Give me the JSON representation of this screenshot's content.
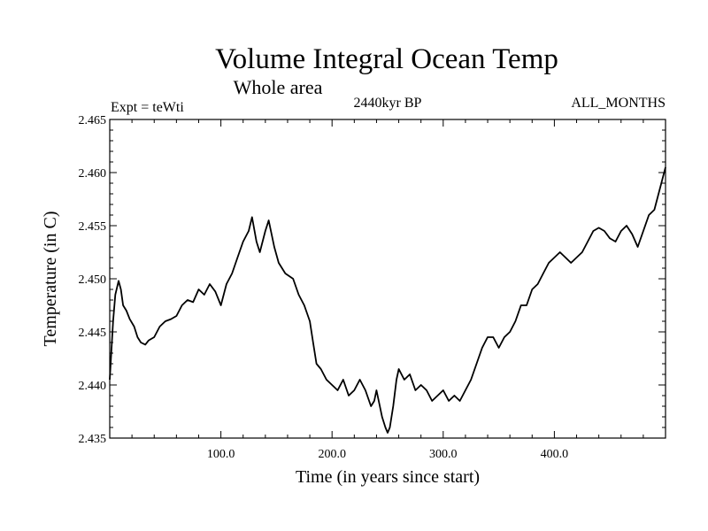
{
  "chart_data": {
    "type": "line",
    "title": "Volume Integral Ocean Temp",
    "subtitle": "Whole area",
    "experiment_label": "Expt = teWti",
    "period_label": "2440kyr BP",
    "months_label": "ALL_MONTHS",
    "xlabel": "Time (in years since start)",
    "ylabel": "Temperature (in C)",
    "xlim": [
      0,
      500
    ],
    "ylim": [
      2.435,
      2.465
    ],
    "x_ticks": [
      100,
      200,
      300,
      400
    ],
    "x_tick_labels": [
      "100.0",
      "200.0",
      "300.0",
      "400.0"
    ],
    "y_ticks": [
      2.435,
      2.44,
      2.445,
      2.45,
      2.455,
      2.46,
      2.465
    ],
    "y_tick_labels": [
      "2.435",
      "2.440",
      "2.445",
      "2.450",
      "2.455",
      "2.460",
      "2.465"
    ],
    "series": [
      {
        "name": "Volume Integral Ocean Temp",
        "color": "#000000",
        "x": [
          0,
          3,
          5,
          8,
          10,
          12,
          15,
          18,
          22,
          25,
          28,
          32,
          35,
          40,
          45,
          50,
          55,
          60,
          65,
          70,
          75,
          80,
          85,
          90,
          95,
          100,
          105,
          110,
          115,
          120,
          125,
          128,
          132,
          135,
          140,
          143,
          148,
          152,
          158,
          165,
          170,
          175,
          180,
          183,
          186,
          190,
          195,
          200,
          205,
          210,
          215,
          220,
          225,
          230,
          235,
          238,
          240,
          243,
          245,
          248,
          250,
          252,
          255,
          258,
          260,
          265,
          270,
          275,
          280,
          285,
          290,
          295,
          300,
          305,
          310,
          315,
          320,
          325,
          330,
          335,
          340,
          345,
          350,
          355,
          360,
          365,
          370,
          375,
          380,
          385,
          390,
          395,
          400,
          405,
          410,
          415,
          420,
          425,
          430,
          435,
          440,
          445,
          450,
          455,
          460,
          465,
          470,
          475,
          480,
          485,
          490,
          495,
          500
        ],
        "values": [
          2.4405,
          2.446,
          2.4485,
          2.4498,
          2.449,
          2.4475,
          2.447,
          2.4462,
          2.4455,
          2.4445,
          2.444,
          2.4438,
          2.4442,
          2.4445,
          2.4455,
          2.446,
          2.4462,
          2.4465,
          2.4475,
          2.448,
          2.4478,
          2.449,
          2.4485,
          2.4495,
          2.4488,
          2.4475,
          2.4495,
          2.4505,
          2.452,
          2.4535,
          2.4545,
          2.4558,
          2.4535,
          2.4525,
          2.4545,
          2.4555,
          2.453,
          2.4515,
          2.4505,
          2.45,
          2.4485,
          2.4475,
          2.446,
          2.444,
          2.442,
          2.4415,
          2.4405,
          2.44,
          2.4395,
          2.4405,
          2.439,
          2.4395,
          2.4405,
          2.4395,
          2.438,
          2.4385,
          2.4395,
          2.438,
          2.437,
          2.436,
          2.4355,
          2.436,
          2.438,
          2.4405,
          2.4415,
          2.4405,
          2.441,
          2.4395,
          2.44,
          2.4395,
          2.4385,
          2.439,
          2.4395,
          2.4385,
          2.439,
          2.4385,
          2.4395,
          2.4405,
          2.442,
          2.4435,
          2.4445,
          2.4445,
          2.4435,
          2.4445,
          2.445,
          2.446,
          2.4475,
          2.4475,
          2.449,
          2.4495,
          2.4505,
          2.4515,
          2.452,
          2.4525,
          2.452,
          2.4515,
          2.452,
          2.4525,
          2.4535,
          2.4545,
          2.4548,
          2.4545,
          2.4538,
          2.4535,
          2.4545,
          2.455,
          2.4542,
          2.453,
          2.4545,
          2.456,
          2.4565,
          2.4585,
          2.4605
        ]
      }
    ]
  }
}
